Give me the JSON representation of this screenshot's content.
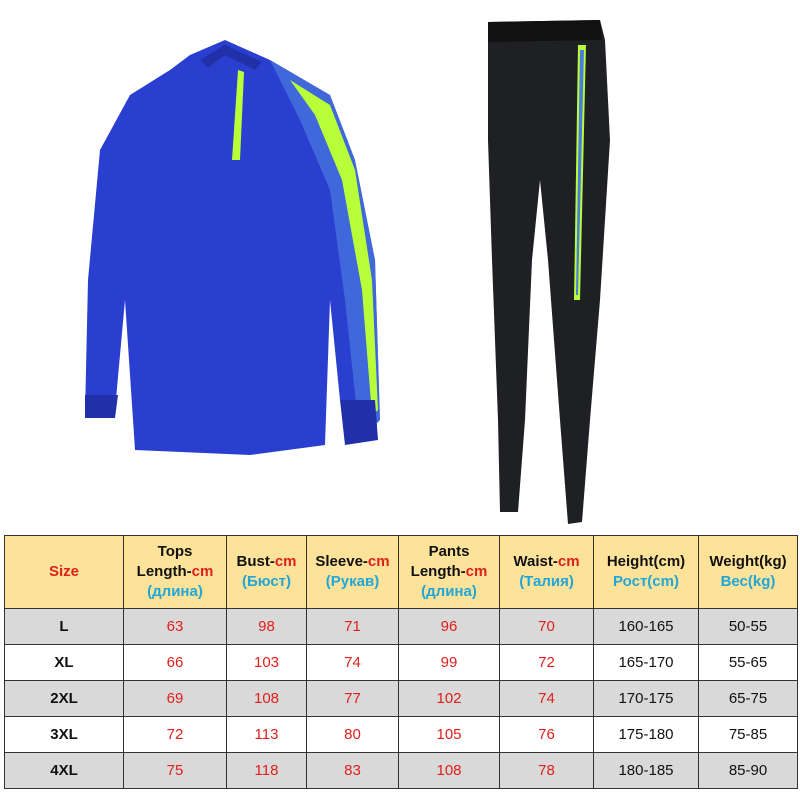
{
  "colors": {
    "header_bg": "#fde39a",
    "red": "#e0201c",
    "cyan": "#22a6d8",
    "row_gray": "#d9d9d9",
    "jacket": "#2a3fcf",
    "accent": "#b8ff3a",
    "pants": "#1f2023"
  },
  "images": {
    "jacket": "blue-zip-training-top",
    "pants": "black-training-pants"
  },
  "headers": [
    {
      "lines": [
        {
          "t": "Size",
          "c": "red"
        }
      ]
    },
    {
      "lines": [
        {
          "t": "Tops"
        },
        {
          "t": "Length-",
          "s": "cm"
        },
        {
          "t": "(длина)",
          "c": "cyan"
        }
      ]
    },
    {
      "lines": [
        {
          "t": "Bust-",
          "s": "cm"
        },
        {
          "t": "(Бюст)",
          "c": "cyan"
        }
      ]
    },
    {
      "lines": [
        {
          "t": "Sleeve-",
          "s": "cm"
        },
        {
          "t": "(Рукав)",
          "c": "cyan"
        }
      ]
    },
    {
      "lines": [
        {
          "t": "Pants"
        },
        {
          "t": "Length-",
          "s": "cm"
        },
        {
          "t": "(длина)",
          "c": "cyan"
        }
      ]
    },
    {
      "lines": [
        {
          "t": "Waist-",
          "s": "cm"
        },
        {
          "t": "(Талия)",
          "c": "cyan"
        }
      ]
    },
    {
      "lines": [
        {
          "t": "Height(cm)"
        },
        {
          "t": "Рост(cm)",
          "c": "cyan"
        }
      ]
    },
    {
      "lines": [
        {
          "t": "Weight(kg)"
        },
        {
          "t": "Вес(kg)",
          "c": "cyan"
        }
      ]
    }
  ],
  "rows": [
    [
      "L",
      "63",
      "98",
      "71",
      "96",
      "70",
      "160-165",
      "50-55"
    ],
    [
      "XL",
      "66",
      "103",
      "74",
      "99",
      "72",
      "165-170",
      "55-65"
    ],
    [
      "2XL",
      "69",
      "108",
      "77",
      "102",
      "74",
      "170-175",
      "65-75"
    ],
    [
      "3XL",
      "72",
      "113",
      "80",
      "105",
      "76",
      "175-180",
      "75-85"
    ],
    [
      "4XL",
      "75",
      "118",
      "83",
      "108",
      "78",
      "180-185",
      "85-90"
    ]
  ]
}
